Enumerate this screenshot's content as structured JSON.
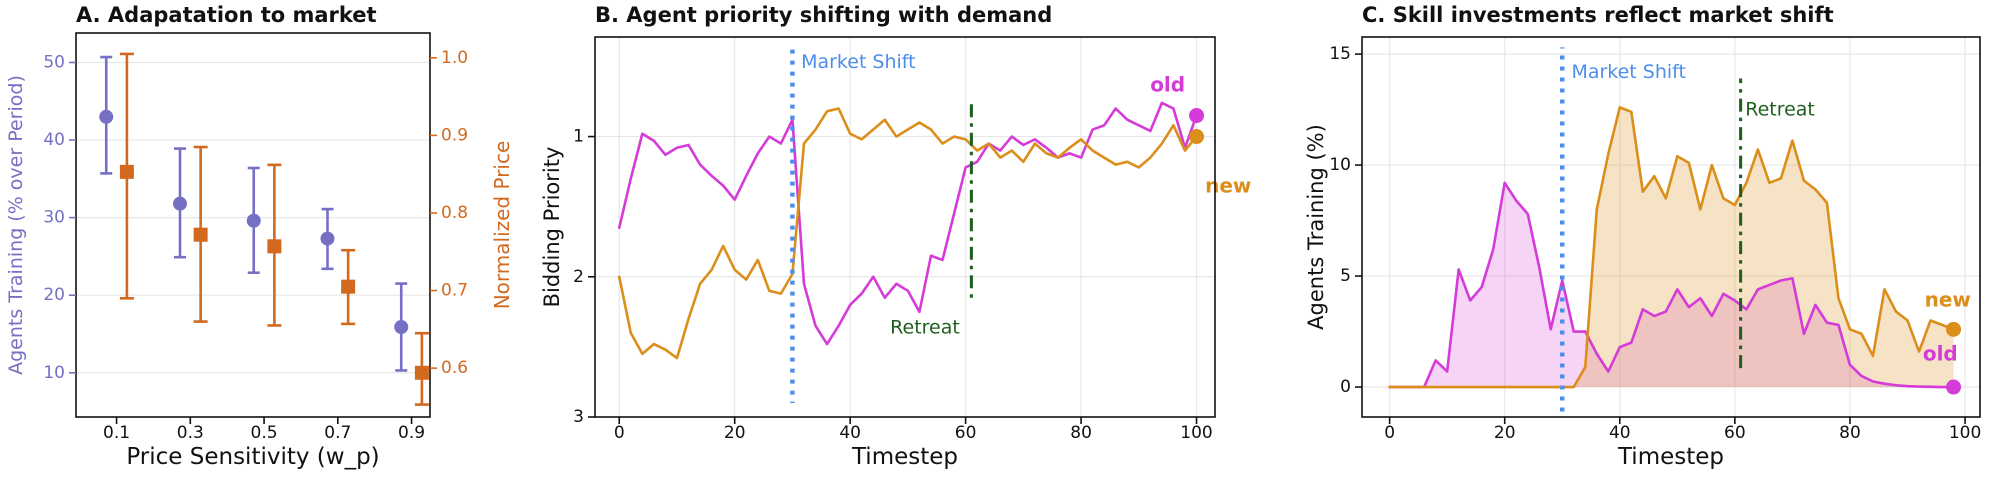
{
  "meta": {
    "bg": "#ffffff",
    "text_color": "#111111",
    "grid_color": "#e7e7e7",
    "accent_purple": "#7670C5",
    "accent_chocolate": "#D2691E",
    "accent_magenta": "#D43BD8",
    "accent_amber": "#DB8E1A",
    "accent_blue": "#4E8EEB",
    "accent_green": "#1E5F1E"
  },
  "chart_data": [
    {
      "id": "A",
      "type": "errorbar_dual",
      "title": "A. Adapatation to market",
      "xlabel": "Price Sensitivity (w_p)",
      "ylabel_left": "Agents Training (% over Period)",
      "ylabel_right": "Normalized Price",
      "xlim": [
        -0.01,
        0.95
      ],
      "xticks": [
        0.1,
        0.3,
        0.5,
        0.7,
        0.9
      ],
      "xtick_decimals": 1,
      "grid": {
        "x": false,
        "y": true
      },
      "left_axis": {
        "color": "#7670C5",
        "ylim": [
          53.8,
          4.3
        ],
        "ticks": [
          50,
          40,
          30,
          20,
          10
        ],
        "decimals": 0
      },
      "right_axis": {
        "color": "#D2691E",
        "ylim": [
          1.032,
          0.537
        ],
        "ticks": [
          1.0,
          0.9,
          0.8,
          0.7,
          0.6
        ],
        "decimals": 1
      },
      "series": [
        {
          "name": "agents-training",
          "axis": "left",
          "marker": "circle",
          "color": "#7670C5",
          "x_offset": -0.028,
          "x": [
            0.1,
            0.3,
            0.5,
            0.7,
            0.9
          ],
          "mean": [
            43.0,
            31.8,
            29.6,
            27.3,
            15.9
          ],
          "lo": [
            35.7,
            24.9,
            22.9,
            23.4,
            10.3
          ],
          "hi": [
            50.7,
            38.9,
            36.4,
            31.1,
            21.5
          ]
        },
        {
          "name": "normalized-price",
          "axis": "right",
          "marker": "square",
          "color": "#D2691E",
          "x_offset": 0.028,
          "x": [
            0.1,
            0.3,
            0.5,
            0.7,
            0.9
          ],
          "mean": [
            0.853,
            0.772,
            0.757,
            0.705,
            0.594
          ],
          "lo": [
            0.69,
            0.66,
            0.655,
            0.657,
            0.553
          ],
          "hi": [
            1.005,
            0.885,
            0.862,
            0.752,
            0.645
          ]
        }
      ]
    },
    {
      "id": "B",
      "type": "line",
      "title": "B. Agent priority shifting with demand",
      "xlabel": "Timestep",
      "ylabel": "Bidding Priority",
      "xlim": [
        -4.2,
        103.2
      ],
      "xticks": [
        0,
        20,
        40,
        60,
        80,
        100
      ],
      "xtick_decimals": 0,
      "ylim": [
        0.29,
        3.0
      ],
      "yticks": [
        1,
        2,
        3
      ],
      "grid": {
        "x": true,
        "y": true
      },
      "x": [
        0,
        2,
        4,
        6,
        8,
        10,
        12,
        14,
        16,
        18,
        20,
        22,
        24,
        26,
        28,
        30,
        32,
        34,
        36,
        38,
        40,
        42,
        44,
        46,
        48,
        50,
        52,
        54,
        56,
        58,
        60,
        62,
        64,
        66,
        68,
        70,
        72,
        74,
        76,
        78,
        80,
        82,
        84,
        86,
        88,
        90,
        92,
        94,
        96,
        98,
        100
      ],
      "series": [
        {
          "name": "old",
          "color": "#D43BD8",
          "end_dot": true,
          "label": {
            "text": "old",
            "x": 95,
            "y": 0.63,
            "anchor": "middle"
          },
          "values": [
            1.65,
            1.3,
            0.98,
            1.03,
            1.13,
            1.08,
            1.06,
            1.2,
            1.28,
            1.35,
            1.45,
            1.28,
            1.12,
            1.0,
            1.05,
            0.88,
            2.05,
            2.35,
            2.48,
            2.35,
            2.2,
            2.12,
            2.0,
            2.15,
            2.05,
            2.1,
            2.25,
            1.85,
            1.88,
            1.55,
            1.22,
            1.18,
            1.05,
            1.1,
            1.0,
            1.06,
            1.02,
            1.08,
            1.15,
            1.12,
            1.15,
            0.95,
            0.92,
            0.8,
            0.88,
            0.92,
            0.96,
            0.76,
            0.8,
            1.08,
            0.85
          ]
        },
        {
          "name": "new",
          "color": "#DB8E1A",
          "end_dot": true,
          "label": {
            "text": "new",
            "x": 105.5,
            "y": 1.35,
            "anchor": "middle"
          },
          "values": [
            2.0,
            2.4,
            2.55,
            2.48,
            2.52,
            2.58,
            2.3,
            2.05,
            1.95,
            1.78,
            1.95,
            2.02,
            1.88,
            2.1,
            2.12,
            1.98,
            1.05,
            0.95,
            0.82,
            0.8,
            0.98,
            1.02,
            0.95,
            0.88,
            1.0,
            0.95,
            0.9,
            0.95,
            1.05,
            1.0,
            1.02,
            1.1,
            1.05,
            1.15,
            1.1,
            1.18,
            1.05,
            1.12,
            1.15,
            1.08,
            1.02,
            1.1,
            1.15,
            1.2,
            1.18,
            1.22,
            1.15,
            1.05,
            0.92,
            1.1,
            1.0
          ]
        }
      ],
      "vlines": [
        {
          "x": 30,
          "color": "#4E8EEB",
          "style": "dotted",
          "span": [
            0.38,
            2.9
          ],
          "label": {
            "text": "Market Shift",
            "x": 31.5,
            "y": 0.47,
            "anchor": "start"
          }
        },
        {
          "x": 61,
          "color": "#1E5F1E",
          "style": "dashdot",
          "span": [
            0.77,
            2.18
          ],
          "label": {
            "text": "Retreat",
            "x": 59.0,
            "y": 2.36,
            "anchor": "end"
          }
        }
      ]
    },
    {
      "id": "C",
      "type": "area",
      "title": "C. Skill investments reflect market shift",
      "xlabel": "Timestep",
      "ylabel": "Agents Training (%)",
      "xlim": [
        -4.8,
        102.6
      ],
      "xticks": [
        0,
        20,
        40,
        60,
        80,
        100
      ],
      "xtick_decimals": 0,
      "ylim": [
        15.77,
        -1.35
      ],
      "yticks": [
        15,
        10,
        5,
        0
      ],
      "grid": {
        "x": true,
        "y": true
      },
      "baseline": 0,
      "x": [
        0,
        2,
        4,
        6,
        8,
        10,
        12,
        14,
        16,
        18,
        20,
        22,
        24,
        26,
        28,
        30,
        32,
        34,
        36,
        38,
        40,
        42,
        44,
        46,
        48,
        50,
        52,
        54,
        56,
        58,
        60,
        62,
        64,
        66,
        68,
        70,
        72,
        74,
        76,
        78,
        80,
        82,
        84,
        86,
        88,
        90,
        92,
        94,
        96,
        98
      ],
      "series": [
        {
          "name": "old",
          "color": "#D43BD8",
          "fill_opacity": 0.22,
          "end_dot": true,
          "label": {
            "text": "old",
            "x": 95.7,
            "y": 1.5,
            "anchor": "middle"
          },
          "values": [
            0,
            0,
            0,
            0,
            1.2,
            0.7,
            5.3,
            3.9,
            4.5,
            6.2,
            9.2,
            8.4,
            7.8,
            5.4,
            2.6,
            4.8,
            2.5,
            2.5,
            1.5,
            0.7,
            1.8,
            2.0,
            3.5,
            3.2,
            3.4,
            4.4,
            3.6,
            4.0,
            3.2,
            4.2,
            3.9,
            3.5,
            4.4,
            4.6,
            4.8,
            4.9,
            2.4,
            3.7,
            2.9,
            2.8,
            1.0,
            0.5,
            0.25,
            0.15,
            0.08,
            0.04,
            0.02,
            0.01,
            0,
            0
          ]
        },
        {
          "name": "new",
          "color": "#DB8E1A",
          "fill_opacity": 0.25,
          "end_dot": true,
          "label": {
            "text": "new",
            "x": 97,
            "y": 3.95,
            "anchor": "middle"
          },
          "values": [
            0,
            0,
            0,
            0,
            0,
            0,
            0,
            0,
            0,
            0,
            0,
            0,
            0,
            0,
            0,
            0,
            0,
            0.9,
            8.0,
            10.5,
            12.6,
            12.4,
            8.8,
            9.5,
            8.5,
            10.4,
            10.1,
            8.0,
            10.0,
            8.5,
            8.2,
            9.2,
            10.7,
            9.2,
            9.4,
            11.1,
            9.3,
            8.9,
            8.3,
            4.0,
            2.6,
            2.4,
            1.4,
            4.4,
            3.4,
            3.0,
            1.6,
            3.0,
            2.8,
            2.6
          ]
        }
      ],
      "vlines": [
        {
          "x": 30,
          "color": "#4E8EEB",
          "style": "dotted",
          "span": [
            -1.1,
            15.3
          ],
          "label": {
            "text": "Market Shift",
            "x": 31.6,
            "y": 14.2,
            "anchor": "start"
          }
        },
        {
          "x": 61,
          "color": "#1E5F1E",
          "style": "dashdot",
          "span": [
            0.85,
            13.9
          ],
          "label": {
            "text": "Retreat",
            "x": 61.8,
            "y": 12.5,
            "anchor": "start"
          }
        }
      ]
    }
  ]
}
